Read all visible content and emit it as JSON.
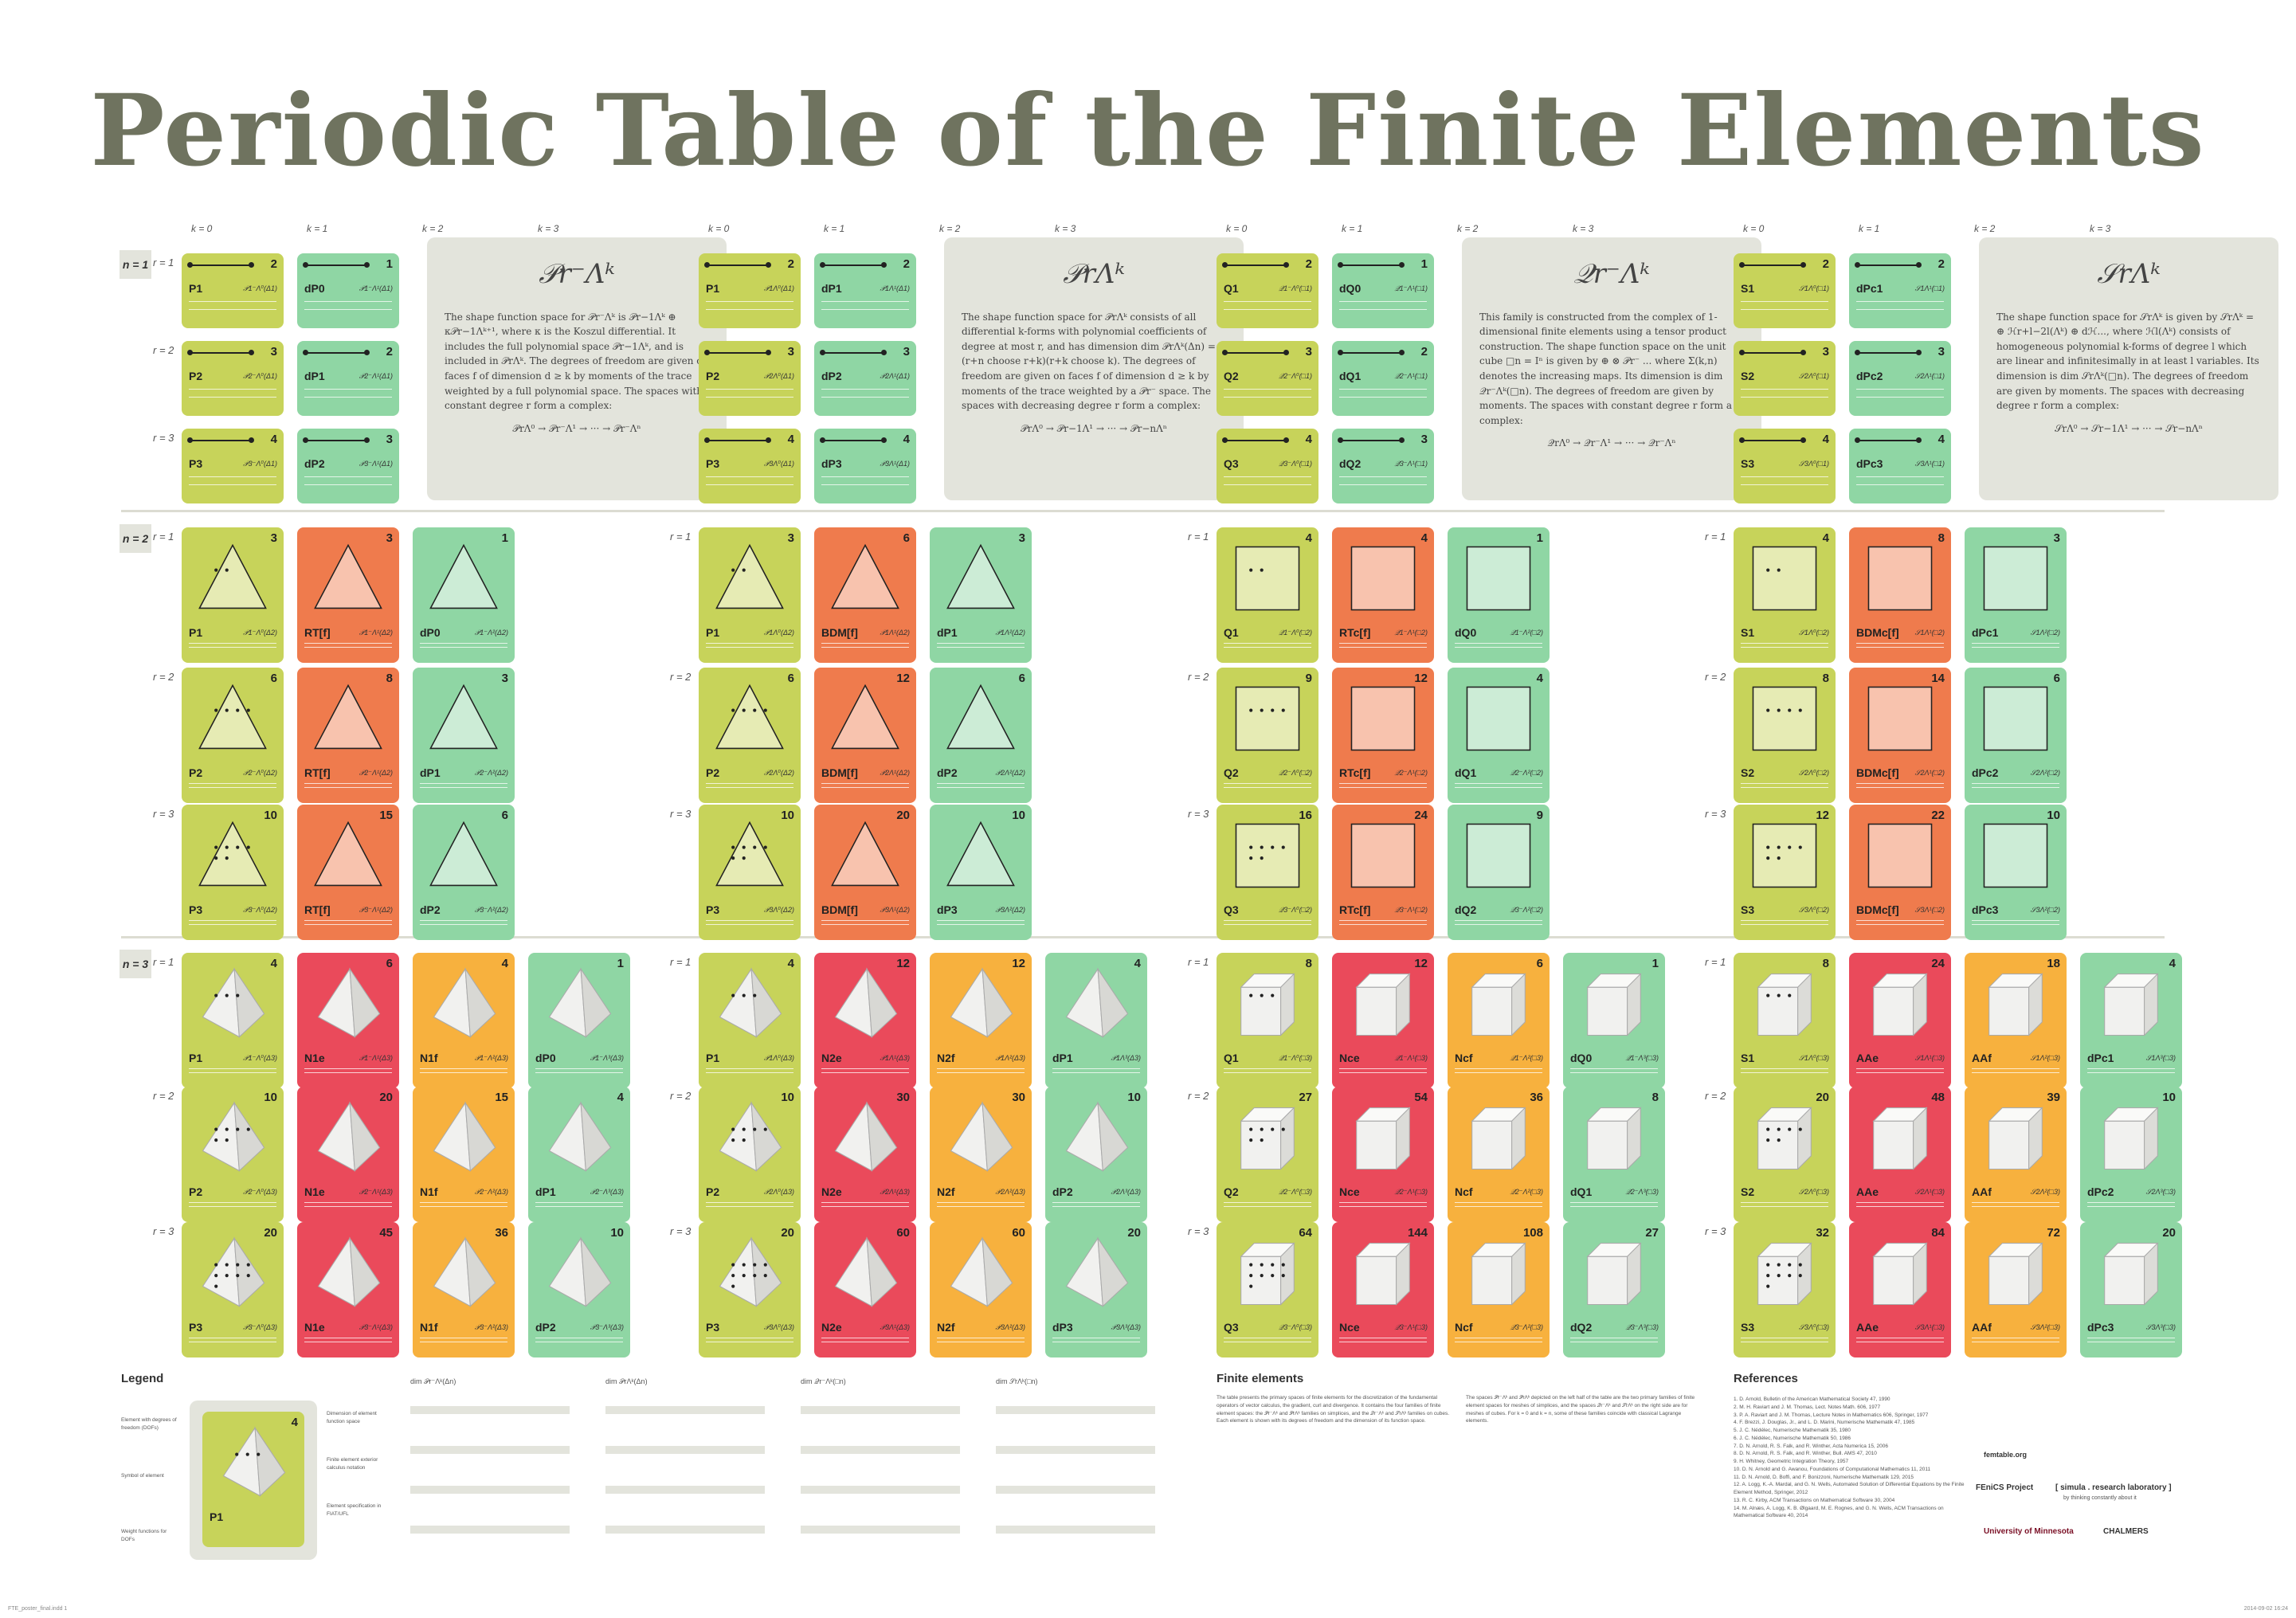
{
  "title": "Periodic Table of the Finite Elements",
  "n_labels": [
    "n = 1",
    "n = 2",
    "n = 3"
  ],
  "r_labels": [
    "r = 1",
    "r = 2",
    "r = 3"
  ],
  "k_labels": [
    "k = 0",
    "k = 1",
    "k = 2",
    "k = 3"
  ],
  "colors": {
    "k0": "#c7d35a",
    "k_top": "#8fd6a4",
    "k1_2d": "#ef7b4d",
    "k1_3d": "#ea4a5b",
    "k2_3d": "#f7b13e",
    "desc_bg": "#e3e4dc",
    "title": "#6f735f"
  },
  "families": [
    {
      "formula": "𝒫r⁻Λᵏ",
      "desc": "The shape function space for 𝒫r⁻Λᵏ is 𝒫r−1Λᵏ ⊕ κ𝒫r−1Λᵏ⁺¹, where κ is the Koszul differential. It includes the full polynomial space 𝒫r−1Λᵏ, and is included in 𝒫rΛᵏ. The degrees of freedom are given on faces f of dimension d ≥ k by moments of the trace weighted by a full polynomial space. The spaces with constant degree r form a complex:",
      "complex": "𝒫rΛ⁰ → 𝒫r⁻Λ¹ → ··· → 𝒫r⁻Λⁿ",
      "n1": [
        [
          {
            "l": "P1",
            "s": "𝒫1⁻Λ⁰(Δ1)",
            "n": "2"
          },
          {
            "l": "dP0",
            "s": "𝒫1⁻Λ¹(Δ1)",
            "n": "1"
          }
        ],
        [
          {
            "l": "P2",
            "s": "𝒫2⁻Λ⁰(Δ1)",
            "n": "3"
          },
          {
            "l": "dP1",
            "s": "𝒫2⁻Λ¹(Δ1)",
            "n": "2"
          }
        ],
        [
          {
            "l": "P3",
            "s": "𝒫3⁻Λ⁰(Δ1)",
            "n": "4"
          },
          {
            "l": "dP2",
            "s": "𝒫3⁻Λ¹(Δ1)",
            "n": "3"
          }
        ]
      ],
      "n2": [
        [
          {
            "l": "P1",
            "s": "𝒫1⁻Λ⁰(Δ2)",
            "n": "3"
          },
          {
            "l": "RT[f]",
            "s": "𝒫1⁻Λ¹(Δ2)",
            "n": "3"
          },
          {
            "l": "dP0",
            "s": "𝒫1⁻Λ²(Δ2)",
            "n": "1"
          }
        ],
        [
          {
            "l": "P2",
            "s": "𝒫2⁻Λ⁰(Δ2)",
            "n": "6"
          },
          {
            "l": "RT[f]",
            "s": "𝒫2⁻Λ¹(Δ2)",
            "n": "8"
          },
          {
            "l": "dP1",
            "s": "𝒫2⁻Λ²(Δ2)",
            "n": "3"
          }
        ],
        [
          {
            "l": "P3",
            "s": "𝒫3⁻Λ⁰(Δ2)",
            "n": "10"
          },
          {
            "l": "RT[f]",
            "s": "𝒫3⁻Λ¹(Δ2)",
            "n": "15"
          },
          {
            "l": "dP2",
            "s": "𝒫3⁻Λ²(Δ2)",
            "n": "6"
          }
        ]
      ],
      "n3": [
        [
          {
            "l": "P1",
            "s": "𝒫1⁻Λ⁰(Δ3)",
            "n": "4"
          },
          {
            "l": "N1e",
            "s": "𝒫1⁻Λ¹(Δ3)",
            "n": "6"
          },
          {
            "l": "N1f",
            "s": "𝒫1⁻Λ²(Δ3)",
            "n": "4"
          },
          {
            "l": "dP0",
            "s": "𝒫1⁻Λ³(Δ3)",
            "n": "1"
          }
        ],
        [
          {
            "l": "P2",
            "s": "𝒫2⁻Λ⁰(Δ3)",
            "n": "10"
          },
          {
            "l": "N1e",
            "s": "𝒫2⁻Λ¹(Δ3)",
            "n": "20"
          },
          {
            "l": "N1f",
            "s": "𝒫2⁻Λ²(Δ3)",
            "n": "15"
          },
          {
            "l": "dP1",
            "s": "𝒫2⁻Λ³(Δ3)",
            "n": "4"
          }
        ],
        [
          {
            "l": "P3",
            "s": "𝒫3⁻Λ⁰(Δ3)",
            "n": "20"
          },
          {
            "l": "N1e",
            "s": "𝒫3⁻Λ¹(Δ3)",
            "n": "45"
          },
          {
            "l": "N1f",
            "s": "𝒫3⁻Λ²(Δ3)",
            "n": "36"
          },
          {
            "l": "dP2",
            "s": "𝒫3⁻Λ³(Δ3)",
            "n": "10"
          }
        ]
      ]
    },
    {
      "formula": "𝒫rΛᵏ",
      "desc": "The shape function space for 𝒫rΛᵏ consists of all differential k-forms with polynomial coefficients of degree at most r, and has dimension dim 𝒫rΛᵏ(Δn) = (r+n choose r+k)(r+k choose k). The degrees of freedom are given on faces f of dimension d ≥ k by moments of the trace weighted by a 𝒫r⁻ space. The spaces with decreasing degree r form a complex:",
      "complex": "𝒫rΛ⁰ → 𝒫r−1Λ¹ → ··· → 𝒫r−nΛⁿ",
      "n1": [
        [
          {
            "l": "P1",
            "s": "𝒫1Λ⁰(Δ1)",
            "n": "2"
          },
          {
            "l": "dP1",
            "s": "𝒫1Λ¹(Δ1)",
            "n": "2"
          }
        ],
        [
          {
            "l": "P2",
            "s": "𝒫2Λ⁰(Δ1)",
            "n": "3"
          },
          {
            "l": "dP2",
            "s": "𝒫2Λ¹(Δ1)",
            "n": "3"
          }
        ],
        [
          {
            "l": "P3",
            "s": "𝒫3Λ⁰(Δ1)",
            "n": "4"
          },
          {
            "l": "dP3",
            "s": "𝒫3Λ¹(Δ1)",
            "n": "4"
          }
        ]
      ],
      "n2": [
        [
          {
            "l": "P1",
            "s": "𝒫1Λ⁰(Δ2)",
            "n": "3"
          },
          {
            "l": "BDM[f]",
            "s": "𝒫1Λ¹(Δ2)",
            "n": "6"
          },
          {
            "l": "dP1",
            "s": "𝒫1Λ²(Δ2)",
            "n": "3"
          }
        ],
        [
          {
            "l": "P2",
            "s": "𝒫2Λ⁰(Δ2)",
            "n": "6"
          },
          {
            "l": "BDM[f]",
            "s": "𝒫2Λ¹(Δ2)",
            "n": "12"
          },
          {
            "l": "dP2",
            "s": "𝒫2Λ²(Δ2)",
            "n": "6"
          }
        ],
        [
          {
            "l": "P3",
            "s": "𝒫3Λ⁰(Δ2)",
            "n": "10"
          },
          {
            "l": "BDM[f]",
            "s": "𝒫3Λ¹(Δ2)",
            "n": "20"
          },
          {
            "l": "dP3",
            "s": "𝒫3Λ²(Δ2)",
            "n": "10"
          }
        ]
      ],
      "n3": [
        [
          {
            "l": "P1",
            "s": "𝒫1Λ⁰(Δ3)",
            "n": "4"
          },
          {
            "l": "N2e",
            "s": "𝒫1Λ¹(Δ3)",
            "n": "12"
          },
          {
            "l": "N2f",
            "s": "𝒫1Λ²(Δ3)",
            "n": "12"
          },
          {
            "l": "dP1",
            "s": "𝒫1Λ³(Δ3)",
            "n": "4"
          }
        ],
        [
          {
            "l": "P2",
            "s": "𝒫2Λ⁰(Δ3)",
            "n": "10"
          },
          {
            "l": "N2e",
            "s": "𝒫2Λ¹(Δ3)",
            "n": "30"
          },
          {
            "l": "N2f",
            "s": "𝒫2Λ²(Δ3)",
            "n": "30"
          },
          {
            "l": "dP2",
            "s": "𝒫2Λ³(Δ3)",
            "n": "10"
          }
        ],
        [
          {
            "l": "P3",
            "s": "𝒫3Λ⁰(Δ3)",
            "n": "20"
          },
          {
            "l": "N2e",
            "s": "𝒫3Λ¹(Δ3)",
            "n": "60"
          },
          {
            "l": "N2f",
            "s": "𝒫3Λ²(Δ3)",
            "n": "60"
          },
          {
            "l": "dP3",
            "s": "𝒫3Λ³(Δ3)",
            "n": "20"
          }
        ]
      ]
    },
    {
      "formula": "𝒬r⁻Λᵏ",
      "desc": "This family is constructed from the complex of 1-dimensional finite elements using a tensor product construction. The shape function space on the unit cube □n = Iⁿ is given by ⊕ ⊗ 𝒫r⁻ ... where Σ(k,n) denotes the increasing maps. Its dimension is dim 𝒬r⁻Λᵏ(□n). The degrees of freedom are given by moments. The spaces with constant degree r form a complex:",
      "complex": "𝒬rΛ⁰ → 𝒬r⁻Λ¹ → ··· → 𝒬r⁻Λⁿ",
      "n1": [
        [
          {
            "l": "Q1",
            "s": "𝒬1⁻Λ⁰(□1)",
            "n": "2"
          },
          {
            "l": "dQ0",
            "s": "𝒬1⁻Λ¹(□1)",
            "n": "1"
          }
        ],
        [
          {
            "l": "Q2",
            "s": "𝒬2⁻Λ⁰(□1)",
            "n": "3"
          },
          {
            "l": "dQ1",
            "s": "𝒬2⁻Λ¹(□1)",
            "n": "2"
          }
        ],
        [
          {
            "l": "Q3",
            "s": "𝒬3⁻Λ⁰(□1)",
            "n": "4"
          },
          {
            "l": "dQ2",
            "s": "𝒬3⁻Λ¹(□1)",
            "n": "3"
          }
        ]
      ],
      "n2": [
        [
          {
            "l": "Q1",
            "s": "𝒬1⁻Λ⁰(□2)",
            "n": "4"
          },
          {
            "l": "RTc[f]",
            "s": "𝒬1⁻Λ¹(□2)",
            "n": "4"
          },
          {
            "l": "dQ0",
            "s": "𝒬1⁻Λ²(□2)",
            "n": "1"
          }
        ],
        [
          {
            "l": "Q2",
            "s": "𝒬2⁻Λ⁰(□2)",
            "n": "9"
          },
          {
            "l": "RTc[f]",
            "s": "𝒬2⁻Λ¹(□2)",
            "n": "12"
          },
          {
            "l": "dQ1",
            "s": "𝒬2⁻Λ²(□2)",
            "n": "4"
          }
        ],
        [
          {
            "l": "Q3",
            "s": "𝒬3⁻Λ⁰(□2)",
            "n": "16"
          },
          {
            "l": "RTc[f]",
            "s": "𝒬3⁻Λ¹(□2)",
            "n": "24"
          },
          {
            "l": "dQ2",
            "s": "𝒬3⁻Λ²(□2)",
            "n": "9"
          }
        ]
      ],
      "n3": [
        [
          {
            "l": "Q1",
            "s": "𝒬1⁻Λ⁰(□3)",
            "n": "8"
          },
          {
            "l": "Nce",
            "s": "𝒬1⁻Λ¹(□3)",
            "n": "12"
          },
          {
            "l": "Ncf",
            "s": "𝒬1⁻Λ²(□3)",
            "n": "6"
          },
          {
            "l": "dQ0",
            "s": "𝒬1⁻Λ³(□3)",
            "n": "1"
          }
        ],
        [
          {
            "l": "Q2",
            "s": "𝒬2⁻Λ⁰(□3)",
            "n": "27"
          },
          {
            "l": "Nce",
            "s": "𝒬2⁻Λ¹(□3)",
            "n": "54"
          },
          {
            "l": "Ncf",
            "s": "𝒬2⁻Λ²(□3)",
            "n": "36"
          },
          {
            "l": "dQ1",
            "s": "𝒬2⁻Λ³(□3)",
            "n": "8"
          }
        ],
        [
          {
            "l": "Q3",
            "s": "𝒬3⁻Λ⁰(□3)",
            "n": "64"
          },
          {
            "l": "Nce",
            "s": "𝒬3⁻Λ¹(□3)",
            "n": "144"
          },
          {
            "l": "Ncf",
            "s": "𝒬3⁻Λ²(□3)",
            "n": "108"
          },
          {
            "l": "dQ2",
            "s": "𝒬3⁻Λ³(□3)",
            "n": "27"
          }
        ]
      ]
    },
    {
      "formula": "𝒮rΛᵏ",
      "desc": "The shape function space for 𝒮rΛᵏ is given by 𝒮rΛᵏ = ⊕ ℋr+l−2l(Λᵏ) ⊕ dℋ..., where ℋl(Λᵏ) consists of homogeneous polynomial k-forms of degree l which are linear and infinitesimally in at least l variables. Its dimension is dim 𝒮rΛᵏ(□n). The degrees of freedom are given by moments. The spaces with decreasing degree r form a complex:",
      "complex": "𝒮rΛ⁰ → 𝒮r−1Λ¹ → ··· → 𝒮r−nΛⁿ",
      "n1": [
        [
          {
            "l": "S1",
            "s": "𝒮1Λ⁰(□1)",
            "n": "2"
          },
          {
            "l": "dPc1",
            "s": "𝒮1Λ¹(□1)",
            "n": "2"
          }
        ],
        [
          {
            "l": "S2",
            "s": "𝒮2Λ⁰(□1)",
            "n": "3"
          },
          {
            "l": "dPc2",
            "s": "𝒮2Λ¹(□1)",
            "n": "3"
          }
        ],
        [
          {
            "l": "S3",
            "s": "𝒮3Λ⁰(□1)",
            "n": "4"
          },
          {
            "l": "dPc3",
            "s": "𝒮3Λ¹(□1)",
            "n": "4"
          }
        ]
      ],
      "n2": [
        [
          {
            "l": "S1",
            "s": "𝒮1Λ⁰(□2)",
            "n": "4"
          },
          {
            "l": "BDMc[f]",
            "s": "𝒮1Λ¹(□2)",
            "n": "8"
          },
          {
            "l": "dPc1",
            "s": "𝒮1Λ²(□2)",
            "n": "3"
          }
        ],
        [
          {
            "l": "S2",
            "s": "𝒮2Λ⁰(□2)",
            "n": "8"
          },
          {
            "l": "BDMc[f]",
            "s": "𝒮2Λ¹(□2)",
            "n": "14"
          },
          {
            "l": "dPc2",
            "s": "𝒮2Λ²(□2)",
            "n": "6"
          }
        ],
        [
          {
            "l": "S3",
            "s": "𝒮3Λ⁰(□2)",
            "n": "12"
          },
          {
            "l": "BDMc[f]",
            "s": "𝒮3Λ¹(□2)",
            "n": "22"
          },
          {
            "l": "dPc3",
            "s": "𝒮3Λ²(□2)",
            "n": "10"
          }
        ]
      ],
      "n3": [
        [
          {
            "l": "S1",
            "s": "𝒮1Λ⁰(□3)",
            "n": "8"
          },
          {
            "l": "AAe",
            "s": "𝒮1Λ¹(□3)",
            "n": "24"
          },
          {
            "l": "AAf",
            "s": "𝒮1Λ²(□3)",
            "n": "18"
          },
          {
            "l": "dPc1",
            "s": "𝒮1Λ³(□3)",
            "n": "4"
          }
        ],
        [
          {
            "l": "S2",
            "s": "𝒮2Λ⁰(□3)",
            "n": "20"
          },
          {
            "l": "AAe",
            "s": "𝒮2Λ¹(□3)",
            "n": "48"
          },
          {
            "l": "AAf",
            "s": "𝒮2Λ²(□3)",
            "n": "39"
          },
          {
            "l": "dPc2",
            "s": "𝒮2Λ³(□3)",
            "n": "10"
          }
        ],
        [
          {
            "l": "S3",
            "s": "𝒮3Λ⁰(□3)",
            "n": "32"
          },
          {
            "l": "AAe",
            "s": "𝒮3Λ¹(□3)",
            "n": "84"
          },
          {
            "l": "AAf",
            "s": "𝒮3Λ²(□3)",
            "n": "72"
          },
          {
            "l": "dPc3",
            "s": "𝒮3Λ³(□3)",
            "n": "20"
          }
        ]
      ]
    }
  ],
  "legend": {
    "title": "Legend",
    "items": [
      "Element with degrees of freedom (DOFs)",
      "Symbol of element",
      "Weight functions for DOFs",
      "Dimension of element function space",
      "Finite element exterior calculus notation",
      "Element specification in FIAT/UFL"
    ],
    "sample_num": "4",
    "sample_label": "P1"
  },
  "sections": {
    "finite_elements": "Finite elements",
    "references": "References",
    "website": "femtable.org"
  },
  "fe_text": "The table presents the primary spaces of finite elements for the discretization of the fundamental operators of vector calculus, the gradient, curl and divergence. It contains the four families of finite element spaces: the 𝒫r⁻Λᵏ and 𝒫rΛᵏ families on simplices, and the 𝒬r⁻Λᵏ and 𝒮rΛᵏ families on cubes. Each element is shown with its degrees of freedom and the dimension of its function space.",
  "fe_text2": "The spaces 𝒫r⁻Λᵏ and 𝒫rΛᵏ depicted on the left half of the table are the two primary families of finite element spaces for meshes of simplices, and the spaces 𝒬r⁻Λᵏ and 𝒮rΛᵏ on the right side are for meshes of cubes. For k = 0 and k = n, some of these families coincide with classical Lagrange elements.",
  "references": [
    "1. D. Arnold, Bulletin of the American Mathematical Society 47, 1990",
    "2. M. H. Raviart and J. M. Thomas, Lect. Notes Math. 606, 1977",
    "3. P. A. Raviart and J. M. Thomas, Lecture Notes in Mathematics 606, Springer, 1977",
    "4. F. Brezzi, J. Douglas, Jr., and L. D. Marini, Numerische Mathematik 47, 1985",
    "5. J. C. Nédélec, Numerische Mathematik 35, 1980",
    "6. J. C. Nédélec, Numerische Mathematik 50, 1986",
    "7. D. N. Arnold, R. S. Falk, and R. Winther, Acta Numerica 15, 2006",
    "8. D. N. Arnold, R. S. Falk, and R. Winther, Bull. AMS 47, 2010",
    "9. H. Whitney, Geometric Integration Theory, 1957",
    "10. D. N. Arnold and G. Awanou, Foundations of Computational Mathematics 11, 2011",
    "11. D. N. Arnold, D. Boffi, and F. Bonizzoni, Numerische Mathematik 129, 2015",
    "12. A. Logg, K.-A. Mardal, and G. N. Wells, Automated Solution of Differential Equations by the Finite Element Method, Springer, 2012",
    "13. R. C. Kirby, ACM Transactions on Mathematical Software 30, 2004",
    "14. M. Alnæs, A. Logg, K. B. Ølgaard, M. E. Rognes, and G. N. Wells, ACM Transactions on Mathematical Software 40, 2014"
  ],
  "logos": [
    "FEniCS Project",
    "[ simula . research laboratory ]",
    "University of Minnesota",
    "CHALMERS"
  ],
  "simula_tagline": "by thinking constantly about it",
  "dim_tables": [
    {
      "formula": "dim 𝒫r⁻Λᵏ(Δn)"
    },
    {
      "formula": "dim 𝒫rΛᵏ(Δn)"
    },
    {
      "formula": "dim 𝒬r⁻Λᵏ(□n)"
    },
    {
      "formula": "dim 𝒮rΛᵏ(□n)"
    }
  ],
  "footer_left": "FTE_poster_final.indd 1",
  "footer_right": "2014-09-02 16:24"
}
